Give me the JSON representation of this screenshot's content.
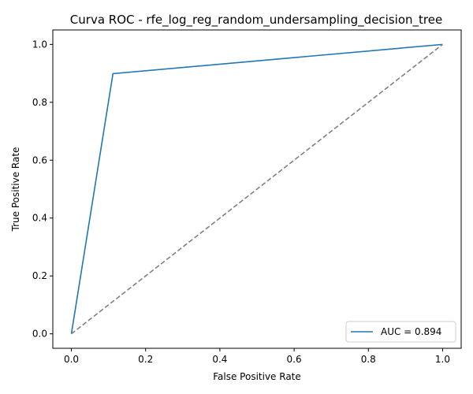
{
  "chart_data": {
    "type": "line",
    "title": "Curva ROC - rfe_log_reg_random_undersampling_decision_tree",
    "xlabel": "False Positive Rate",
    "ylabel": "True Positive Rate",
    "xlim": [
      -0.05,
      1.05
    ],
    "ylim": [
      -0.05,
      1.05
    ],
    "xticks": [
      "0.0",
      "0.2",
      "0.4",
      "0.6",
      "0.8",
      "1.0"
    ],
    "yticks": [
      "0.0",
      "0.2",
      "0.4",
      "0.6",
      "0.8",
      "1.0"
    ],
    "grid": false,
    "legend_position": "lower-right",
    "series": [
      {
        "name": "AUC = 0.894",
        "color": "#1f77b4",
        "style": "solid",
        "x": [
          0.0,
          0.112,
          1.0
        ],
        "y": [
          0.0,
          0.899,
          1.0
        ]
      },
      {
        "name": "",
        "color": "#808080",
        "style": "dashed",
        "x": [
          0.0,
          1.0
        ],
        "y": [
          0.0,
          1.0
        ]
      }
    ]
  }
}
